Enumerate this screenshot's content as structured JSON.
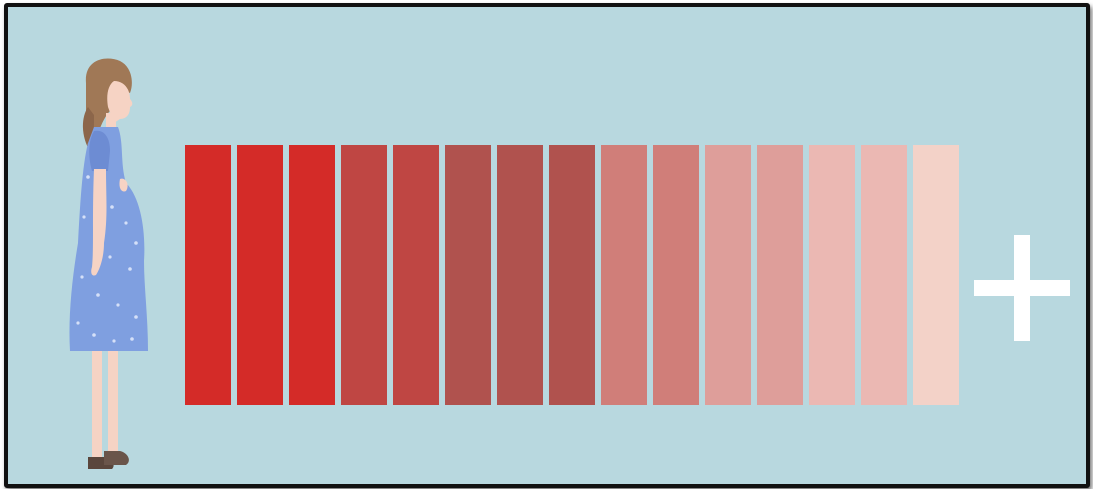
{
  "scene": {
    "background_color": "#b8d8df",
    "border_color": "#111111",
    "figure": "pregnant-woman-illustration",
    "dress_color": "#7f9fe0",
    "hair_color": "#a07856",
    "skin_color": "#f6d3c4"
  },
  "color_scale": {
    "bar_colors": [
      "#d42b28",
      "#d42b28",
      "#d42b28",
      "#bf4643",
      "#bf4643",
      "#b0524e",
      "#b0524e",
      "#b0524e",
      "#d07e79",
      "#d07e79",
      "#de9e9a",
      "#de9e9a",
      "#ebb8b3",
      "#ebb8b3",
      "#f3d2c8"
    ],
    "trailing_symbol": "plus-icon"
  }
}
